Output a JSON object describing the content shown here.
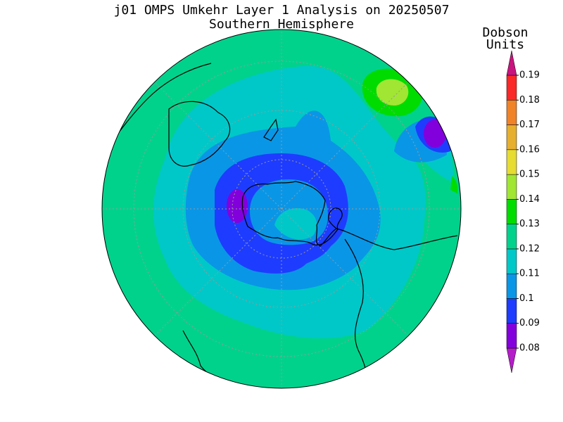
{
  "chart_data": {
    "type": "map",
    "title": "j01 OMPS Umkehr Layer 1 Analysis on 20250507",
    "subtitle": "Southern Hemisphere",
    "colorbar": {
      "label_lines": [
        "Dobson",
        "Units"
      ],
      "levels": [
        0.08,
        0.09,
        0.1,
        0.11,
        0.12,
        0.13,
        0.14,
        0.15,
        0.16,
        0.17,
        0.18,
        0.19
      ],
      "colors": [
        "#b41ec8",
        "#8200dc",
        "#1e3cff",
        "#0a96e6",
        "#00c8c8",
        "#00d28c",
        "#00dc00",
        "#a0e632",
        "#e6dc32",
        "#e6af2d",
        "#f08228",
        "#fa2828",
        "#c8147d"
      ]
    }
  }
}
